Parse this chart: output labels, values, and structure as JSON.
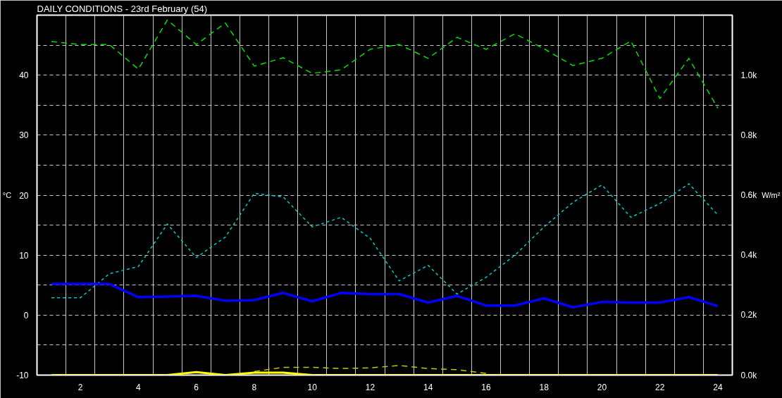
{
  "chart_data": {
    "type": "line",
    "title": "DAILY CONDITIONS - 23rd February (54)",
    "ylabel": "°C",
    "y2label": "W/m²",
    "x": [
      1,
      2,
      3,
      4,
      5,
      6,
      7,
      8,
      9,
      10,
      11,
      12,
      13,
      14,
      15,
      16,
      17,
      18,
      19,
      20,
      21,
      22,
      23,
      24
    ],
    "series": [
      {
        "color": "#00e000",
        "line_style": "dashed",
        "values": [
          45.6,
          45.1,
          45.1,
          41.0,
          49.2,
          45.1,
          48.7,
          41.5,
          42.9,
          40.3,
          40.9,
          44.3,
          45.1,
          42.8,
          46.3,
          44.3,
          46.9,
          44.4,
          41.6,
          42.8,
          45.7,
          36.1,
          42.8,
          34.5
        ]
      },
      {
        "color": "#00c8c8",
        "line_style": "dotted",
        "values": [
          2.9,
          2.9,
          6.9,
          8.1,
          15.2,
          9.6,
          13.0,
          20.3,
          19.7,
          14.7,
          16.3,
          12.8,
          5.7,
          8.3,
          3.5,
          6.3,
          10.0,
          14.7,
          18.8,
          21.7,
          16.3,
          18.6,
          21.9,
          16.7
        ]
      },
      {
        "color": "#0000ff",
        "line_style": "solid",
        "values": [
          5.2,
          5.2,
          5.2,
          3.0,
          3.1,
          3.2,
          2.4,
          2.5,
          3.7,
          2.3,
          3.7,
          3.5,
          3.5,
          2.1,
          3.2,
          1.6,
          1.6,
          2.8,
          1.3,
          2.2,
          2.1,
          2.1,
          3.0,
          1.5
        ]
      },
      {
        "color": "#c8c800",
        "line_style": "dashed",
        "values": [
          null,
          null,
          null,
          null,
          null,
          null,
          null,
          -9.4,
          -8.7,
          -8.7,
          -8.9,
          -8.8,
          -8.4,
          -8.9,
          -9.1,
          -9.7,
          null,
          null,
          null,
          null,
          null,
          null,
          null,
          null
        ]
      },
      {
        "color": "#ffff00",
        "line_style": "solid",
        "values": [
          -10,
          -10,
          -10,
          -10,
          -10,
          -9.5,
          -10,
          -9.6,
          -9.6,
          -10,
          -10,
          -10,
          -10,
          -10,
          -10,
          -10,
          -10,
          -10,
          -10,
          -10,
          -10,
          -10,
          -10,
          -10
        ]
      }
    ],
    "xlim": [
      0.5,
      24.5
    ],
    "xticks": [
      {
        "value": 1.5,
        "label": null
      },
      2,
      {
        "value": 2.5,
        "label": null
      },
      {
        "value": 3.5,
        "label": null
      },
      4,
      {
        "value": 4.5,
        "label": null
      },
      {
        "value": 5.5,
        "label": null
      },
      6,
      {
        "value": 6.5,
        "label": null
      },
      {
        "value": 7.5,
        "label": null
      },
      8,
      {
        "value": 8.5,
        "label": null
      },
      {
        "value": 9.5,
        "label": null
      },
      10,
      {
        "value": 10.5,
        "label": null
      },
      {
        "value": 11.5,
        "label": null
      },
      12,
      {
        "value": 12.5,
        "label": null
      },
      {
        "value": 13.5,
        "label": null
      },
      14,
      {
        "value": 14.5,
        "label": null
      },
      {
        "value": 15.5,
        "label": null
      },
      16,
      {
        "value": 16.5,
        "label": null
      },
      {
        "value": 17.5,
        "label": null
      },
      18,
      {
        "value": 18.5,
        "label": null
      },
      {
        "value": 19.5,
        "label": null
      },
      20,
      {
        "value": 20.5,
        "label": null
      },
      {
        "value": 21.5,
        "label": null
      },
      22,
      {
        "value": 22.5,
        "label": null
      },
      {
        "value": 23.5,
        "label": null
      },
      24
    ],
    "ylim": [
      -10,
      50
    ],
    "yticks": [
      -10,
      {
        "value": -5,
        "label": null
      },
      0,
      {
        "value": 5,
        "label": null
      },
      10,
      {
        "value": 15,
        "label": null
      },
      20,
      {
        "value": 25,
        "label": null
      },
      30,
      {
        "value": 35,
        "label": null
      },
      40,
      {
        "value": 45,
        "label": null
      }
    ],
    "y2lim": [
      0,
      1200
    ],
    "y2ticks": [
      {
        "value": 0,
        "label": "0.0k"
      },
      {
        "value": 200,
        "label": "0.2k"
      },
      {
        "value": 400,
        "label": "0.4k"
      },
      {
        "value": 600,
        "label": "0.6k"
      },
      {
        "value": 800,
        "label": "0.8k"
      },
      {
        "value": 1000,
        "label": "1.0k"
      }
    ],
    "grid": true,
    "marker": "none"
  }
}
